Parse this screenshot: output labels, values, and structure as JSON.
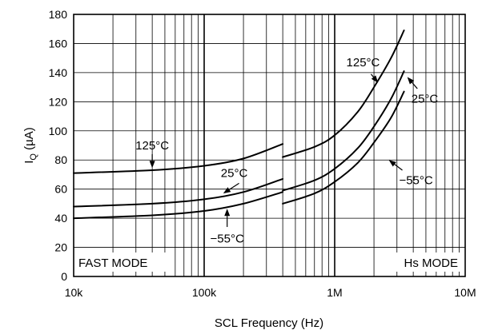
{
  "chart_data": {
    "type": "line",
    "xscale": "log",
    "xlim": [
      10000,
      10000000
    ],
    "ylim": [
      0,
      180
    ],
    "xlabel": "SCL Frequency (Hz)",
    "ylabel": "I_Q (µA)",
    "ylabel_main": "I",
    "ylabel_sub": "Q",
    "ylabel_unit": " (µA)",
    "x_ticks": [
      {
        "value": 10000,
        "label": "10k"
      },
      {
        "value": 100000,
        "label": "100k"
      },
      {
        "value": 1000000,
        "label": "1M"
      },
      {
        "value": 10000000,
        "label": "10M"
      }
    ],
    "y_ticks": [
      0,
      20,
      40,
      60,
      80,
      100,
      120,
      140,
      160,
      180
    ],
    "grid": true,
    "regions": [
      {
        "label": "FAST MODE",
        "position": "bottom-left"
      },
      {
        "label": "Hs MODE",
        "position": "bottom-right"
      }
    ],
    "series": [
      {
        "name": "125°C",
        "segment": "FAST MODE",
        "x": [
          10000,
          40000,
          100000,
          200000,
          400000
        ],
        "y": [
          71,
          73,
          76,
          81,
          91
        ]
      },
      {
        "name": "25°C",
        "segment": "FAST MODE",
        "x": [
          10000,
          40000,
          100000,
          200000,
          400000
        ],
        "y": [
          48,
          50,
          53,
          58,
          67
        ]
      },
      {
        "name": "-55°C",
        "segment": "FAST MODE",
        "x": [
          10000,
          40000,
          100000,
          200000,
          400000
        ],
        "y": [
          40,
          42,
          45,
          50,
          58
        ]
      },
      {
        "name": "125°C",
        "segment": "Hs MODE",
        "x": [
          400000,
          700000,
          1000000,
          1500000,
          2000000,
          2700000,
          3400000
        ],
        "y": [
          82,
          89,
          97,
          113,
          130,
          150,
          169
        ]
      },
      {
        "name": "25°C",
        "segment": "Hs MODE",
        "x": [
          400000,
          700000,
          1000000,
          1500000,
          2000000,
          2700000,
          3400000
        ],
        "y": [
          59,
          66,
          74,
          88,
          103,
          122,
          141
        ]
      },
      {
        "name": "-55°C",
        "segment": "Hs MODE",
        "x": [
          400000,
          700000,
          1000000,
          1500000,
          2000000,
          2700000,
          3400000
        ],
        "y": [
          50,
          57,
          65,
          78,
          92,
          109,
          127
        ]
      }
    ],
    "annotations": [
      {
        "text": "125°C",
        "segment": "FAST MODE",
        "text_x": 40000,
        "text_y": 90,
        "arrow_from_y": 84,
        "arrow_to_x": 40000,
        "arrow_to_y": 74.5
      },
      {
        "text": "25°C",
        "segment": "FAST MODE",
        "text_x": 170000,
        "text_y": 71,
        "arrow_from_x": 185000,
        "arrow_from_y": 64,
        "arrow_to_x": 140000,
        "arrow_to_y": 57
      },
      {
        "text": "−55°C",
        "segment": "FAST MODE",
        "text_x": 150000,
        "text_y": 26,
        "arrow_from_x": 150000,
        "arrow_from_y": 34,
        "arrow_to_x": 150000,
        "arrow_to_y": 46.5
      },
      {
        "text": "125°C",
        "segment": "Hs MODE",
        "text_x": 1650000,
        "text_y": 147,
        "arrow_from_x": 1900000,
        "arrow_from_y": 139,
        "arrow_to_x": 2150000,
        "arrow_to_y": 133
      },
      {
        "text": "25°C",
        "segment": "Hs MODE",
        "text_x": 4900000,
        "text_y": 122,
        "arrow_from_x": 4300000,
        "arrow_from_y": 129,
        "arrow_to_x": 3600000,
        "arrow_to_y": 137
      },
      {
        "text": "−55°C",
        "segment": "Hs MODE",
        "text_x": 4200000,
        "text_y": 66,
        "arrow_from_x": 3300000,
        "arrow_from_y": 73,
        "arrow_to_x": 2600000,
        "arrow_to_y": 80
      }
    ]
  }
}
